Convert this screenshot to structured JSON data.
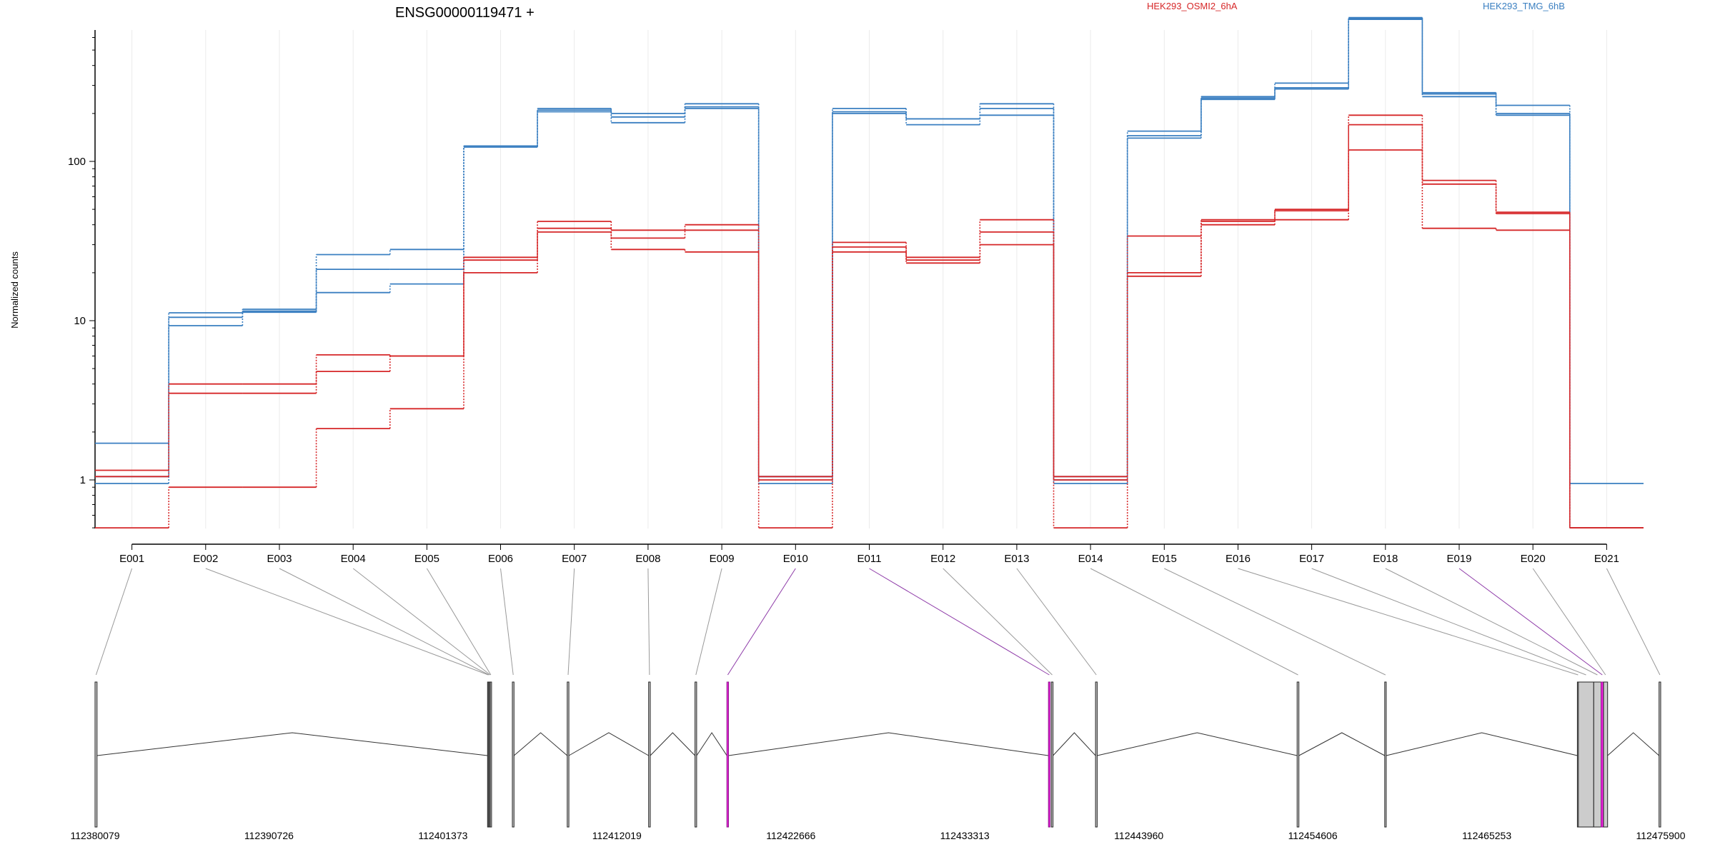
{
  "chart_data": {
    "type": "line",
    "title": "ENSG00000119471 +",
    "ylabel": "Normalized counts",
    "yscale": "log",
    "yticks": [
      1,
      10,
      100
    ],
    "ytick_labels": [
      "1",
      "10",
      "100"
    ],
    "categories": [
      "E001",
      "E002",
      "E003",
      "E004",
      "E005",
      "E006",
      "E007",
      "E008",
      "E009",
      "E010",
      "E011",
      "E012",
      "E013",
      "E014",
      "E015",
      "E016",
      "E017",
      "E018",
      "E019",
      "E020",
      "E021"
    ],
    "legend": [
      {
        "name": "HEK293_OSMI2_6hA",
        "color": "#d62728"
      },
      {
        "name": "HEK293_TMG_6hB",
        "color": "#3a7fc1"
      }
    ],
    "series": [
      {
        "name": "HEK293_TMG_6hB",
        "values": [
          1.7,
          11.2,
          11.8,
          26,
          28,
          125,
          210,
          200,
          230,
          1.05,
          215,
          185,
          230,
          1.05,
          155,
          255,
          310,
          800,
          270,
          225,
          0.95
        ]
      },
      {
        "name": "HEK293_TMG_6hB",
        "values": [
          1.05,
          10.5,
          11.5,
          21,
          21,
          125,
          215,
          190,
          220,
          1.05,
          205,
          185,
          215,
          1.0,
          145,
          250,
          290,
          790,
          265,
          200,
          0.5
        ]
      },
      {
        "name": "HEK293_TMG_6hB",
        "values": [
          0.95,
          9.3,
          11.3,
          15,
          17,
          123,
          205,
          175,
          215,
          0.95,
          200,
          170,
          195,
          0.95,
          140,
          245,
          285,
          780,
          255,
          195,
          0.5
        ]
      },
      {
        "name": "HEK293_OSMI2_6hA",
        "values": [
          1.15,
          4.0,
          4.0,
          6.1,
          6.0,
          25,
          42,
          37,
          40,
          1.05,
          31,
          25,
          43,
          1.05,
          34,
          43,
          50,
          195,
          76,
          48,
          0.5
        ]
      },
      {
        "name": "HEK293_OSMI2_6hA",
        "values": [
          1.05,
          3.5,
          3.5,
          4.8,
          6.0,
          24,
          38,
          33,
          37,
          1.0,
          29,
          24,
          36,
          1.0,
          20,
          42,
          49,
          170,
          72,
          47,
          0.5
        ]
      },
      {
        "name": "HEK293_OSMI2_6hA",
        "values": [
          0.5,
          0.9,
          0.9,
          2.1,
          2.8,
          20,
          36,
          28,
          27,
          0.5,
          27,
          23,
          30,
          0.5,
          19,
          40,
          43,
          118,
          38,
          37,
          0.5
        ]
      }
    ],
    "gene_model": {
      "xticks": [
        112380079,
        112390726,
        112401373,
        112412019,
        112422666,
        112433313,
        112443960,
        112454606,
        112465253,
        112475900
      ],
      "xrange": [
        112380079,
        112475900
      ],
      "exons": [
        {
          "id": "E001",
          "start": 112380079,
          "end": 112380200
        },
        {
          "id": "E002",
          "start": 112404100,
          "end": 112404150
        },
        {
          "id": "E003",
          "start": 112404150,
          "end": 112404220
        },
        {
          "id": "E004",
          "start": 112404220,
          "end": 112404260
        },
        {
          "id": "E005",
          "start": 112404260,
          "end": 112404300
        },
        {
          "id": "E006",
          "start": 112405620,
          "end": 112405720
        },
        {
          "id": "E007",
          "start": 112408980,
          "end": 112409080
        },
        {
          "id": "E008",
          "start": 112413960,
          "end": 112414060
        },
        {
          "id": "E009",
          "start": 112416800,
          "end": 112416900
        },
        {
          "id": "E010",
          "start": 112418750,
          "end": 112418850
        },
        {
          "id": "E011",
          "start": 112438430,
          "end": 112438530
        },
        {
          "id": "E012",
          "start": 112438610,
          "end": 112438710
        },
        {
          "id": "E013",
          "start": 112441310,
          "end": 112441410
        },
        {
          "id": "E014",
          "start": 112453650,
          "end": 112453760
        },
        {
          "id": "E015",
          "start": 112459010,
          "end": 112459100
        },
        {
          "id": "E016",
          "start": 112470800,
          "end": 112470860
        },
        {
          "id": "E017",
          "start": 112470860,
          "end": 112471800
        },
        {
          "id": "E018",
          "start": 112471800,
          "end": 112472250
        },
        {
          "id": "E019",
          "start": 112472250,
          "end": 112472400
        },
        {
          "id": "E020",
          "start": 112472400,
          "end": 112472650
        },
        {
          "id": "E021",
          "start": 112475800,
          "end": 112475900
        }
      ],
      "highlighted": [
        "E010",
        "E011",
        "E019"
      ],
      "highlight_color": "#ee22dd"
    }
  }
}
